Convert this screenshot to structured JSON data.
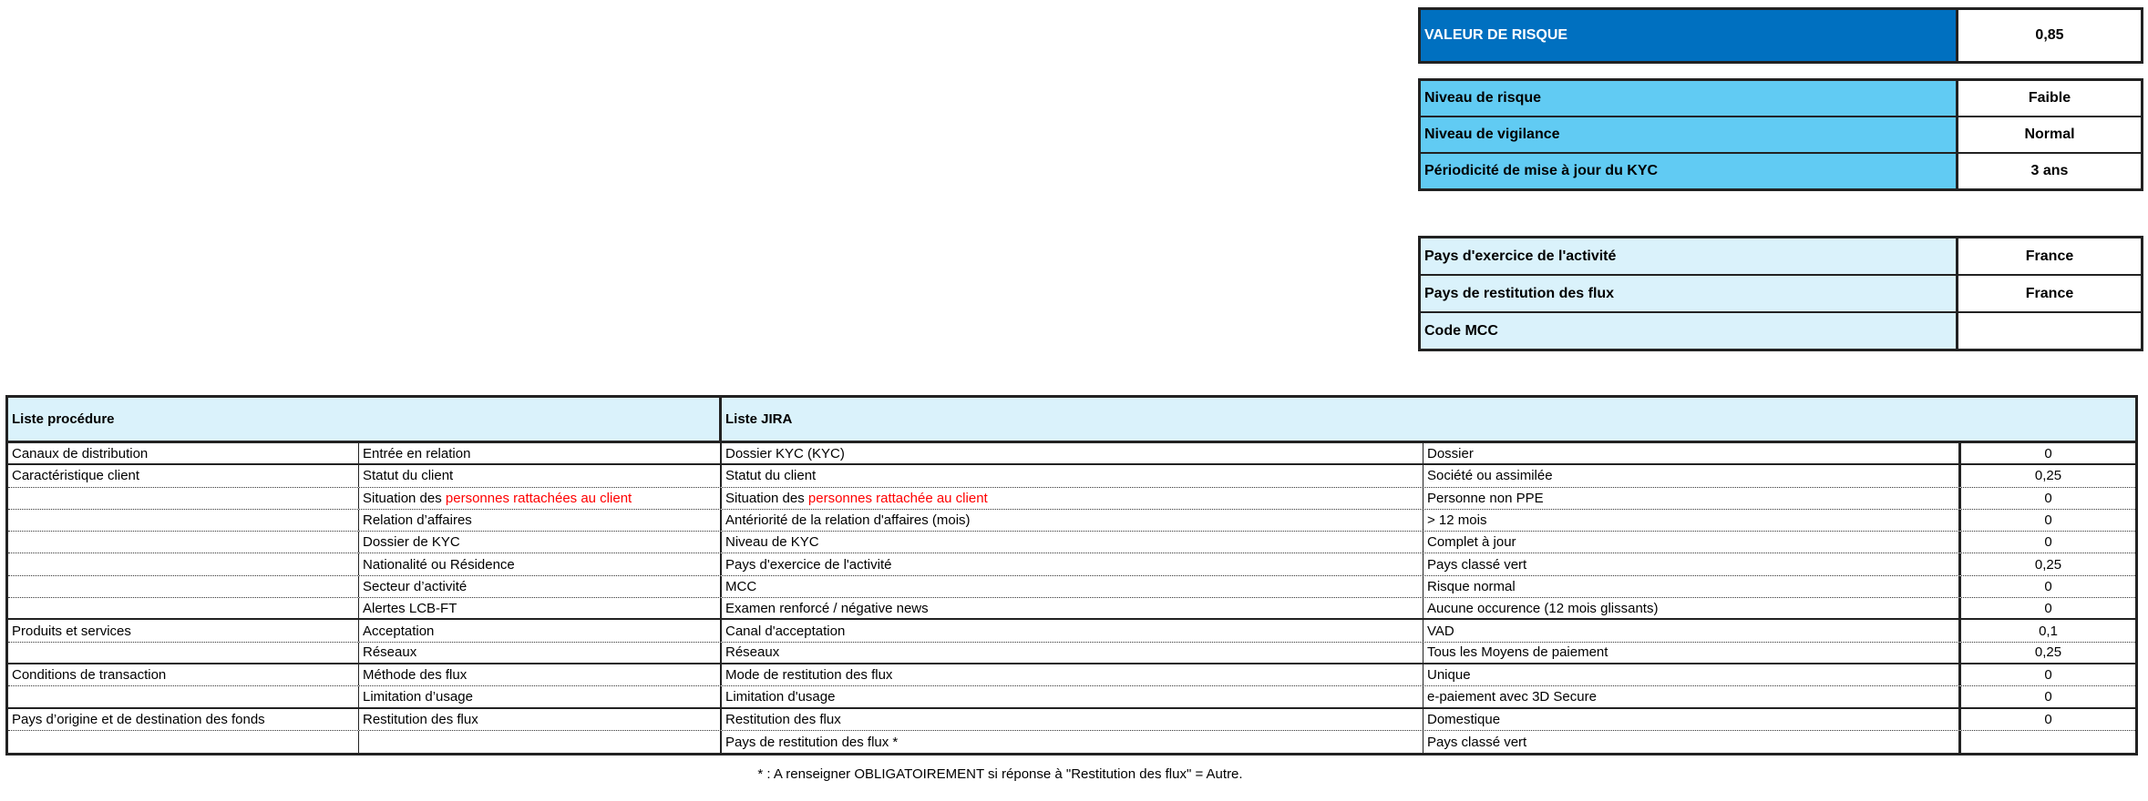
{
  "summary": {
    "risk_value": {
      "label": "VALEUR DE RISQUE",
      "value": "0,85",
      "color": "#0070C0"
    },
    "levels": [
      {
        "label": "Niveau de risque",
        "value": "Faible"
      },
      {
        "label": "Niveau de vigilance",
        "value": "Normal"
      },
      {
        "label": "Périodicité de mise à jour du KYC",
        "value": "3 ans"
      }
    ],
    "levels_color": "#61CBF3",
    "countries": [
      {
        "label": "Pays d'exercice de l'activité",
        "value": "France"
      },
      {
        "label": "Pays de restitution des flux",
        "value": "France"
      },
      {
        "label": "Code MCC",
        "value": ""
      }
    ],
    "countries_color": "#DAF2FB"
  },
  "table": {
    "headers": {
      "procedure": "Liste procédure",
      "jira": "Liste JIRA"
    },
    "highlight_color": "#FF0000",
    "rows": [
      {
        "category": "Canaux de distribution",
        "procedure": [
          {
            "t": "Entrée en relation"
          }
        ],
        "jira": [
          {
            "t": "Dossier KYC (KYC)"
          }
        ],
        "answer": "Dossier",
        "score": "0",
        "group_end": true
      },
      {
        "category": "Caractéristique client",
        "procedure": [
          {
            "t": "Statut du client"
          }
        ],
        "jira": [
          {
            "t": "Statut du client"
          }
        ],
        "answer": "Société ou assimilée",
        "score": "0,25",
        "group_end": false
      },
      {
        "category": "",
        "procedure": [
          {
            "t": "Situation des "
          },
          {
            "t": "personnes rattachées au client",
            "red": true
          }
        ],
        "jira": [
          {
            "t": "Situation des "
          },
          {
            "t": "personnes rattachée au client",
            "red": true
          }
        ],
        "answer": "Personne non PPE",
        "score": "0",
        "group_end": false
      },
      {
        "category": "",
        "procedure": [
          {
            "t": "Relation d’affaires"
          }
        ],
        "jira": [
          {
            "t": "Antériorité de la relation d'affaires (mois)"
          }
        ],
        "answer": "> 12 mois",
        "score": "0",
        "group_end": false
      },
      {
        "category": "",
        "procedure": [
          {
            "t": "Dossier de KYC"
          }
        ],
        "jira": [
          {
            "t": "Niveau de KYC"
          }
        ],
        "answer": "Complet à jour",
        "score": "0",
        "group_end": false
      },
      {
        "category": "",
        "procedure": [
          {
            "t": "Nationalité ou Résidence"
          }
        ],
        "jira": [
          {
            "t": "Pays d'exercice de l'activité"
          }
        ],
        "answer": "Pays classé vert",
        "score": "0,25",
        "group_end": false
      },
      {
        "category": "",
        "procedure": [
          {
            "t": "Secteur d’activité"
          }
        ],
        "jira": [
          {
            "t": "MCC"
          }
        ],
        "answer": "Risque normal",
        "score": "0",
        "group_end": false
      },
      {
        "category": "",
        "procedure": [
          {
            "t": "Alertes LCB-FT"
          }
        ],
        "jira": [
          {
            "t": "Examen renforcé / négative news"
          }
        ],
        "answer": "Aucune occurence (12 mois glissants)",
        "score": "0",
        "group_end": true
      },
      {
        "category": "Produits et services",
        "procedure": [
          {
            "t": "Acceptation"
          }
        ],
        "jira": [
          {
            "t": "Canal d'acceptation"
          }
        ],
        "answer": "VAD",
        "score": "0,1",
        "group_end": false
      },
      {
        "category": "",
        "procedure": [
          {
            "t": "Réseaux"
          }
        ],
        "jira": [
          {
            "t": "Réseaux"
          }
        ],
        "answer": "Tous les Moyens de paiement",
        "score": "0,25",
        "group_end": true
      },
      {
        "category": "Conditions de transaction",
        "procedure": [
          {
            "t": "Méthode des flux"
          }
        ],
        "jira": [
          {
            "t": "Mode de restitution des flux"
          }
        ],
        "answer": "Unique",
        "score": "0",
        "group_end": false
      },
      {
        "category": "",
        "procedure": [
          {
            "t": "Limitation d’usage"
          }
        ],
        "jira": [
          {
            "t": "Limitation d'usage"
          }
        ],
        "answer": "e-paiement avec 3D Secure",
        "score": "0",
        "group_end": true
      },
      {
        "category": "Pays d’origine et de destination des fonds",
        "procedure": [
          {
            "t": "Restitution des flux"
          }
        ],
        "jira": [
          {
            "t": "Restitution des flux"
          }
        ],
        "answer": "Domestique",
        "score": "0",
        "group_end": false
      },
      {
        "category": "",
        "procedure": [
          {
            "t": ""
          }
        ],
        "jira": [
          {
            "t": "Pays de restitution des flux *"
          }
        ],
        "answer": "Pays classé vert",
        "score": "",
        "group_end": true
      }
    ]
  },
  "footnote": "* : A renseigner OBLIGATOIREMENT si réponse à \"Restitution des flux\" = Autre."
}
